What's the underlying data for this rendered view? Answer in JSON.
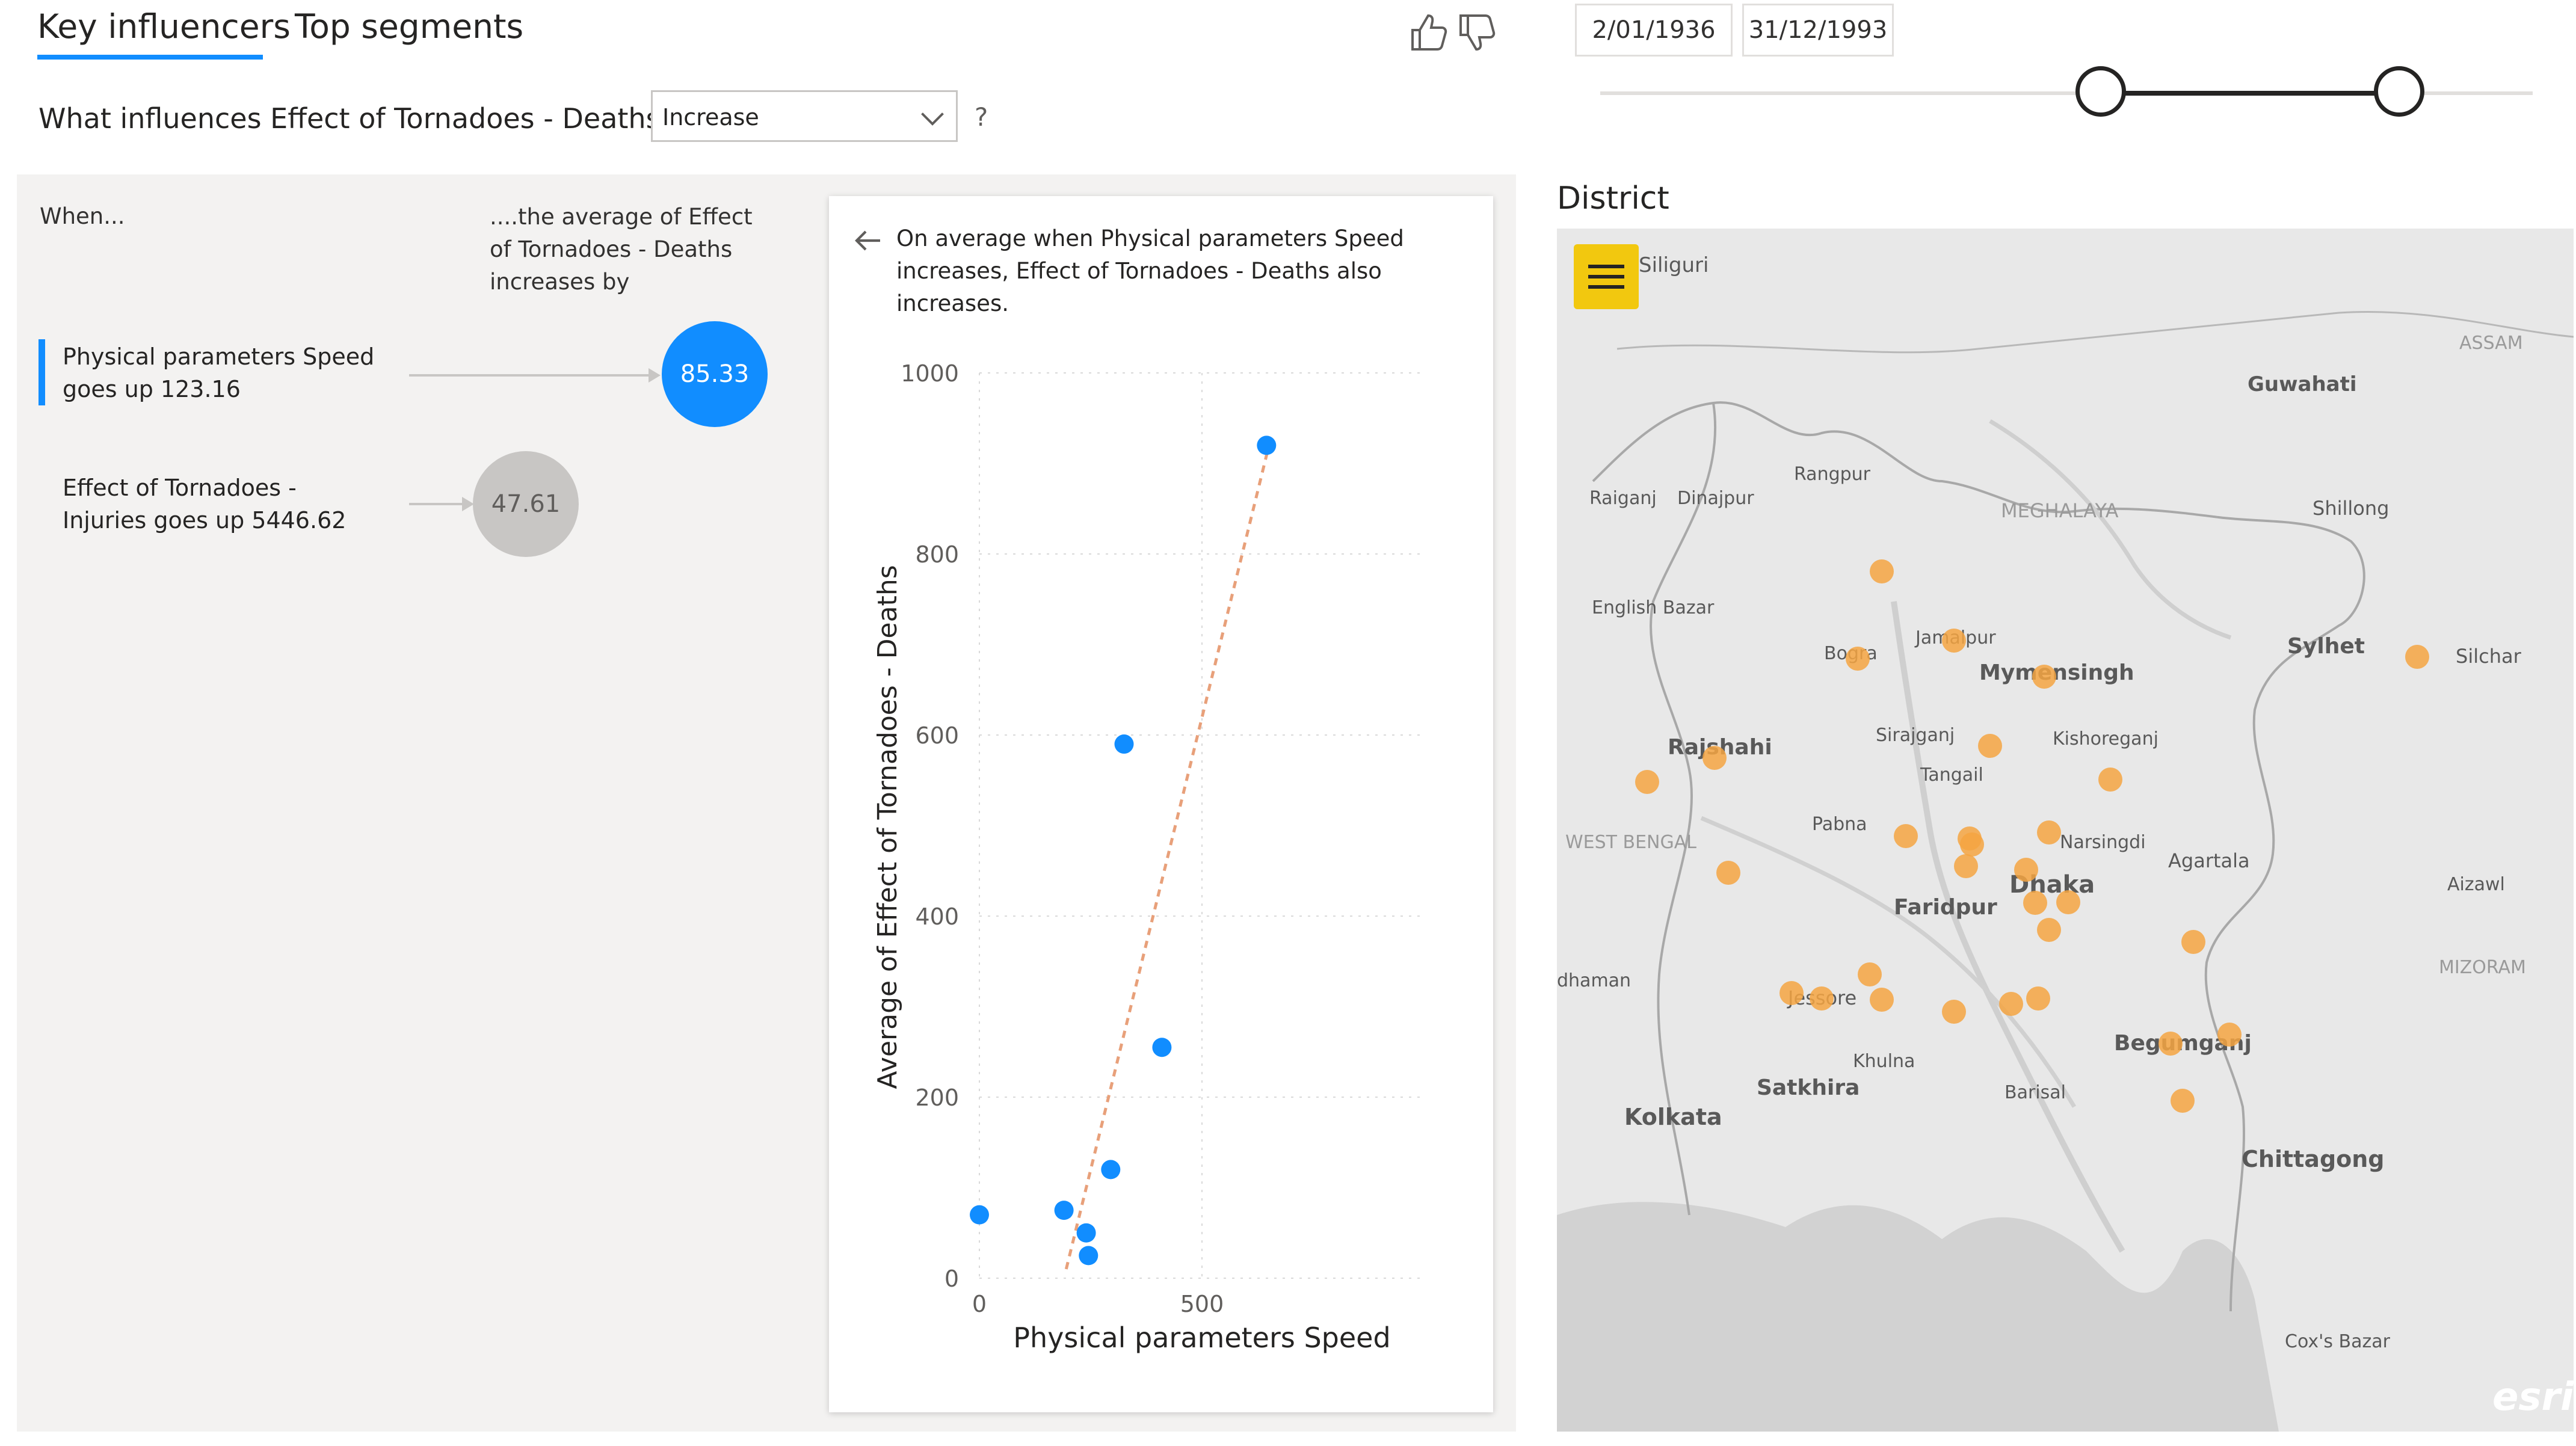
{
  "tabs": [
    {
      "label": "Key influencers",
      "active": true
    },
    {
      "label": "Top segments",
      "active": false
    }
  ],
  "feedback": {
    "like_icon": "thumbs-up-icon",
    "dislike_icon": "thumbs-down-icon"
  },
  "question": {
    "text": "What influences Effect of Tornadoes - Deaths to",
    "selected": "Increase",
    "help": "?"
  },
  "influencers_panel": {
    "when_header": "When...",
    "avg_header": "....the average of Effect of Tornadoes - Deaths increases by",
    "items": [
      {
        "line1": "Physical parameters Speed",
        "line2": "goes up 123.16",
        "value": "85.33",
        "selected": true,
        "color": "#118dff"
      },
      {
        "line1": "Effect of Tornadoes -",
        "line2": "Injuries goes up 5446.62",
        "value": "47.61",
        "selected": false,
        "color": "#c8c6c4"
      }
    ]
  },
  "detail": {
    "text": "On average when Physical parameters Speed increases, Effect of Tornadoes - Deaths also increases."
  },
  "chart_data": {
    "type": "scatter",
    "xlabel": "Physical parameters Speed",
    "ylabel": "Average of Effect of Tornadoes - Deaths",
    "xlim": [
      0,
      1000
    ],
    "ylim": [
      0,
      1000
    ],
    "x_ticks": [
      0,
      500
    ],
    "y_ticks": [
      0,
      200,
      400,
      600,
      800,
      1000
    ],
    "points": [
      {
        "x": 0,
        "y": 70
      },
      {
        "x": 190,
        "y": 75
      },
      {
        "x": 240,
        "y": 50
      },
      {
        "x": 245,
        "y": 25
      },
      {
        "x": 295,
        "y": 120
      },
      {
        "x": 325,
        "y": 590
      },
      {
        "x": 410,
        "y": 255
      },
      {
        "x": 645,
        "y": 920
      }
    ],
    "trend_line": {
      "x1": 195,
      "y1": 10,
      "x2": 648,
      "y2": 915
    },
    "point_color": "#118dff",
    "trend_color": "#e8a07a",
    "grid": true
  },
  "date_slicer": {
    "start": "2/01/1936",
    "end": "31/12/1993"
  },
  "map": {
    "title": "District",
    "attribution": "esri",
    "dot_color": "#f5a442",
    "labels": {
      "siliguri": "Siliguri",
      "assam": "ASSAM",
      "guwahati": "Guwahati",
      "rangpur": "Rangpur",
      "raiganj": "Raiganj",
      "dinajpur": "Dinajpur",
      "meghalaya": "MEGHALAYA",
      "shillong": "Shillong",
      "english_bazar": "English Bazar",
      "bogra": "Bogra",
      "jamalpur": "Jamalpur",
      "mymensingh": "Mymensingh",
      "sylhet": "Sylhet",
      "silchar": "Silchar",
      "rajshahi": "Rajshahi",
      "sirajganj": "Sirajganj",
      "kishoreganj": "Kishoreganj",
      "tangail": "Tangail",
      "pabna": "Pabna",
      "narsingdi": "Narsingdi",
      "west_bengal": "WEST BENGAL",
      "agartala": "Agartala",
      "dhaka": "Dhaka",
      "faridpur": "Faridpur",
      "aizawl": "Aizawl",
      "mizoram": "MIZORAM",
      "bardhaman": "dhaman",
      "jessore": "Jessore",
      "begumganj": "Begumganj",
      "khulna": "Khulna",
      "satkhira": "Satkhira",
      "barisal": "Barisal",
      "kolkata": "Kolkata",
      "chittagong": "Chittagong",
      "coxs_bazar": "Cox's Bazar"
    }
  }
}
